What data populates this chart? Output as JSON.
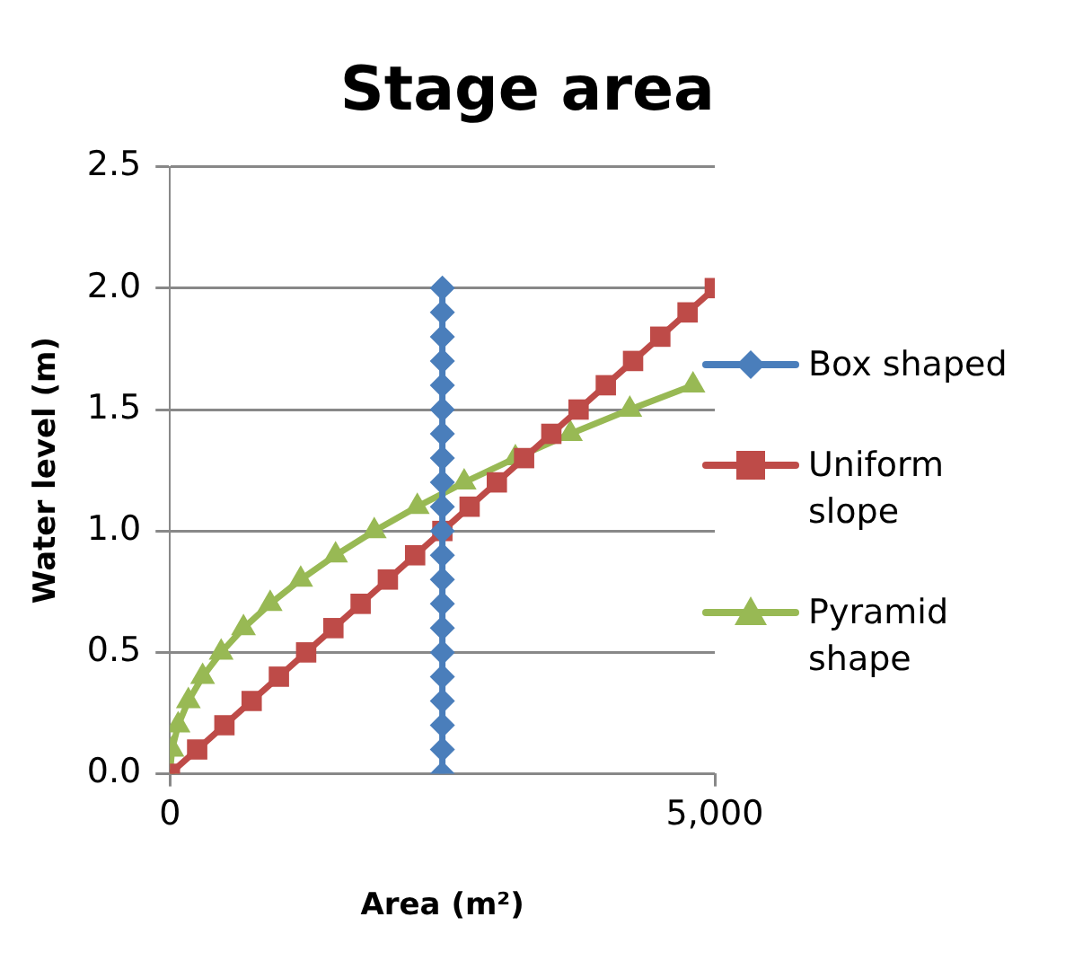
{
  "chart_data": {
    "type": "line",
    "title": "Stage area",
    "xlabel": "Area (m²)",
    "ylabel": "Water level (m)",
    "xlim": [
      0,
      5000
    ],
    "xticks": [
      0,
      {
        "value": 5000,
        "label": "5,000"
      }
    ],
    "ylim": [
      0,
      2.5
    ],
    "yticks": [
      {
        "value": 0,
        "label": "0.0"
      },
      {
        "value": 0.5,
        "label": "0.5"
      },
      {
        "value": 1,
        "label": "1.0"
      },
      {
        "value": 1.5,
        "label": "1.5"
      },
      {
        "value": 2,
        "label": "2.0"
      },
      {
        "value": 2.5,
        "label": "2.5"
      }
    ],
    "grid": "y",
    "legend": "right",
    "series": [
      {
        "name": "Box shaped",
        "color": "#4a7ebb",
        "marker": "diamond",
        "x": [
          2500,
          2500,
          2500,
          2500,
          2500,
          2500,
          2500,
          2500,
          2500,
          2500,
          2500,
          2500,
          2500,
          2500,
          2500,
          2500,
          2500,
          2500,
          2500,
          2500,
          2500
        ],
        "values": [
          0,
          0.1,
          0.2,
          0.3,
          0.4,
          0.5,
          0.6,
          0.7,
          0.8,
          0.9,
          1.0,
          1.1,
          1.2,
          1.3,
          1.4,
          1.5,
          1.6,
          1.7,
          1.8,
          1.9,
          2.0
        ]
      },
      {
        "name": "Uniform slope",
        "color": "#be4b48",
        "marker": "square",
        "x": [
          0,
          250,
          500,
          750,
          1000,
          1250,
          1500,
          1750,
          2000,
          2250,
          2500,
          2750,
          3000,
          3250,
          3500,
          3750,
          4000,
          4250,
          4500,
          4750,
          5000
        ],
        "values": [
          0,
          0.1,
          0.2,
          0.3,
          0.4,
          0.5,
          0.6,
          0.7,
          0.8,
          0.9,
          1.0,
          1.1,
          1.2,
          1.3,
          1.4,
          1.5,
          1.6,
          1.7,
          1.8,
          1.9,
          2.0
        ]
      },
      {
        "name": "Pyramid shape",
        "color": "#98b954",
        "marker": "triangle",
        "x": [
          0,
          19,
          75,
          169,
          300,
          470,
          675,
          920,
          1200,
          1520,
          1875,
          2270,
          2700,
          3170,
          3675,
          4220,
          4800
        ],
        "values": [
          0,
          0.1,
          0.2,
          0.3,
          0.4,
          0.5,
          0.6,
          0.7,
          0.8,
          0.9,
          1.0,
          1.1,
          1.2,
          1.3,
          1.4,
          1.5,
          1.6
        ]
      }
    ]
  }
}
